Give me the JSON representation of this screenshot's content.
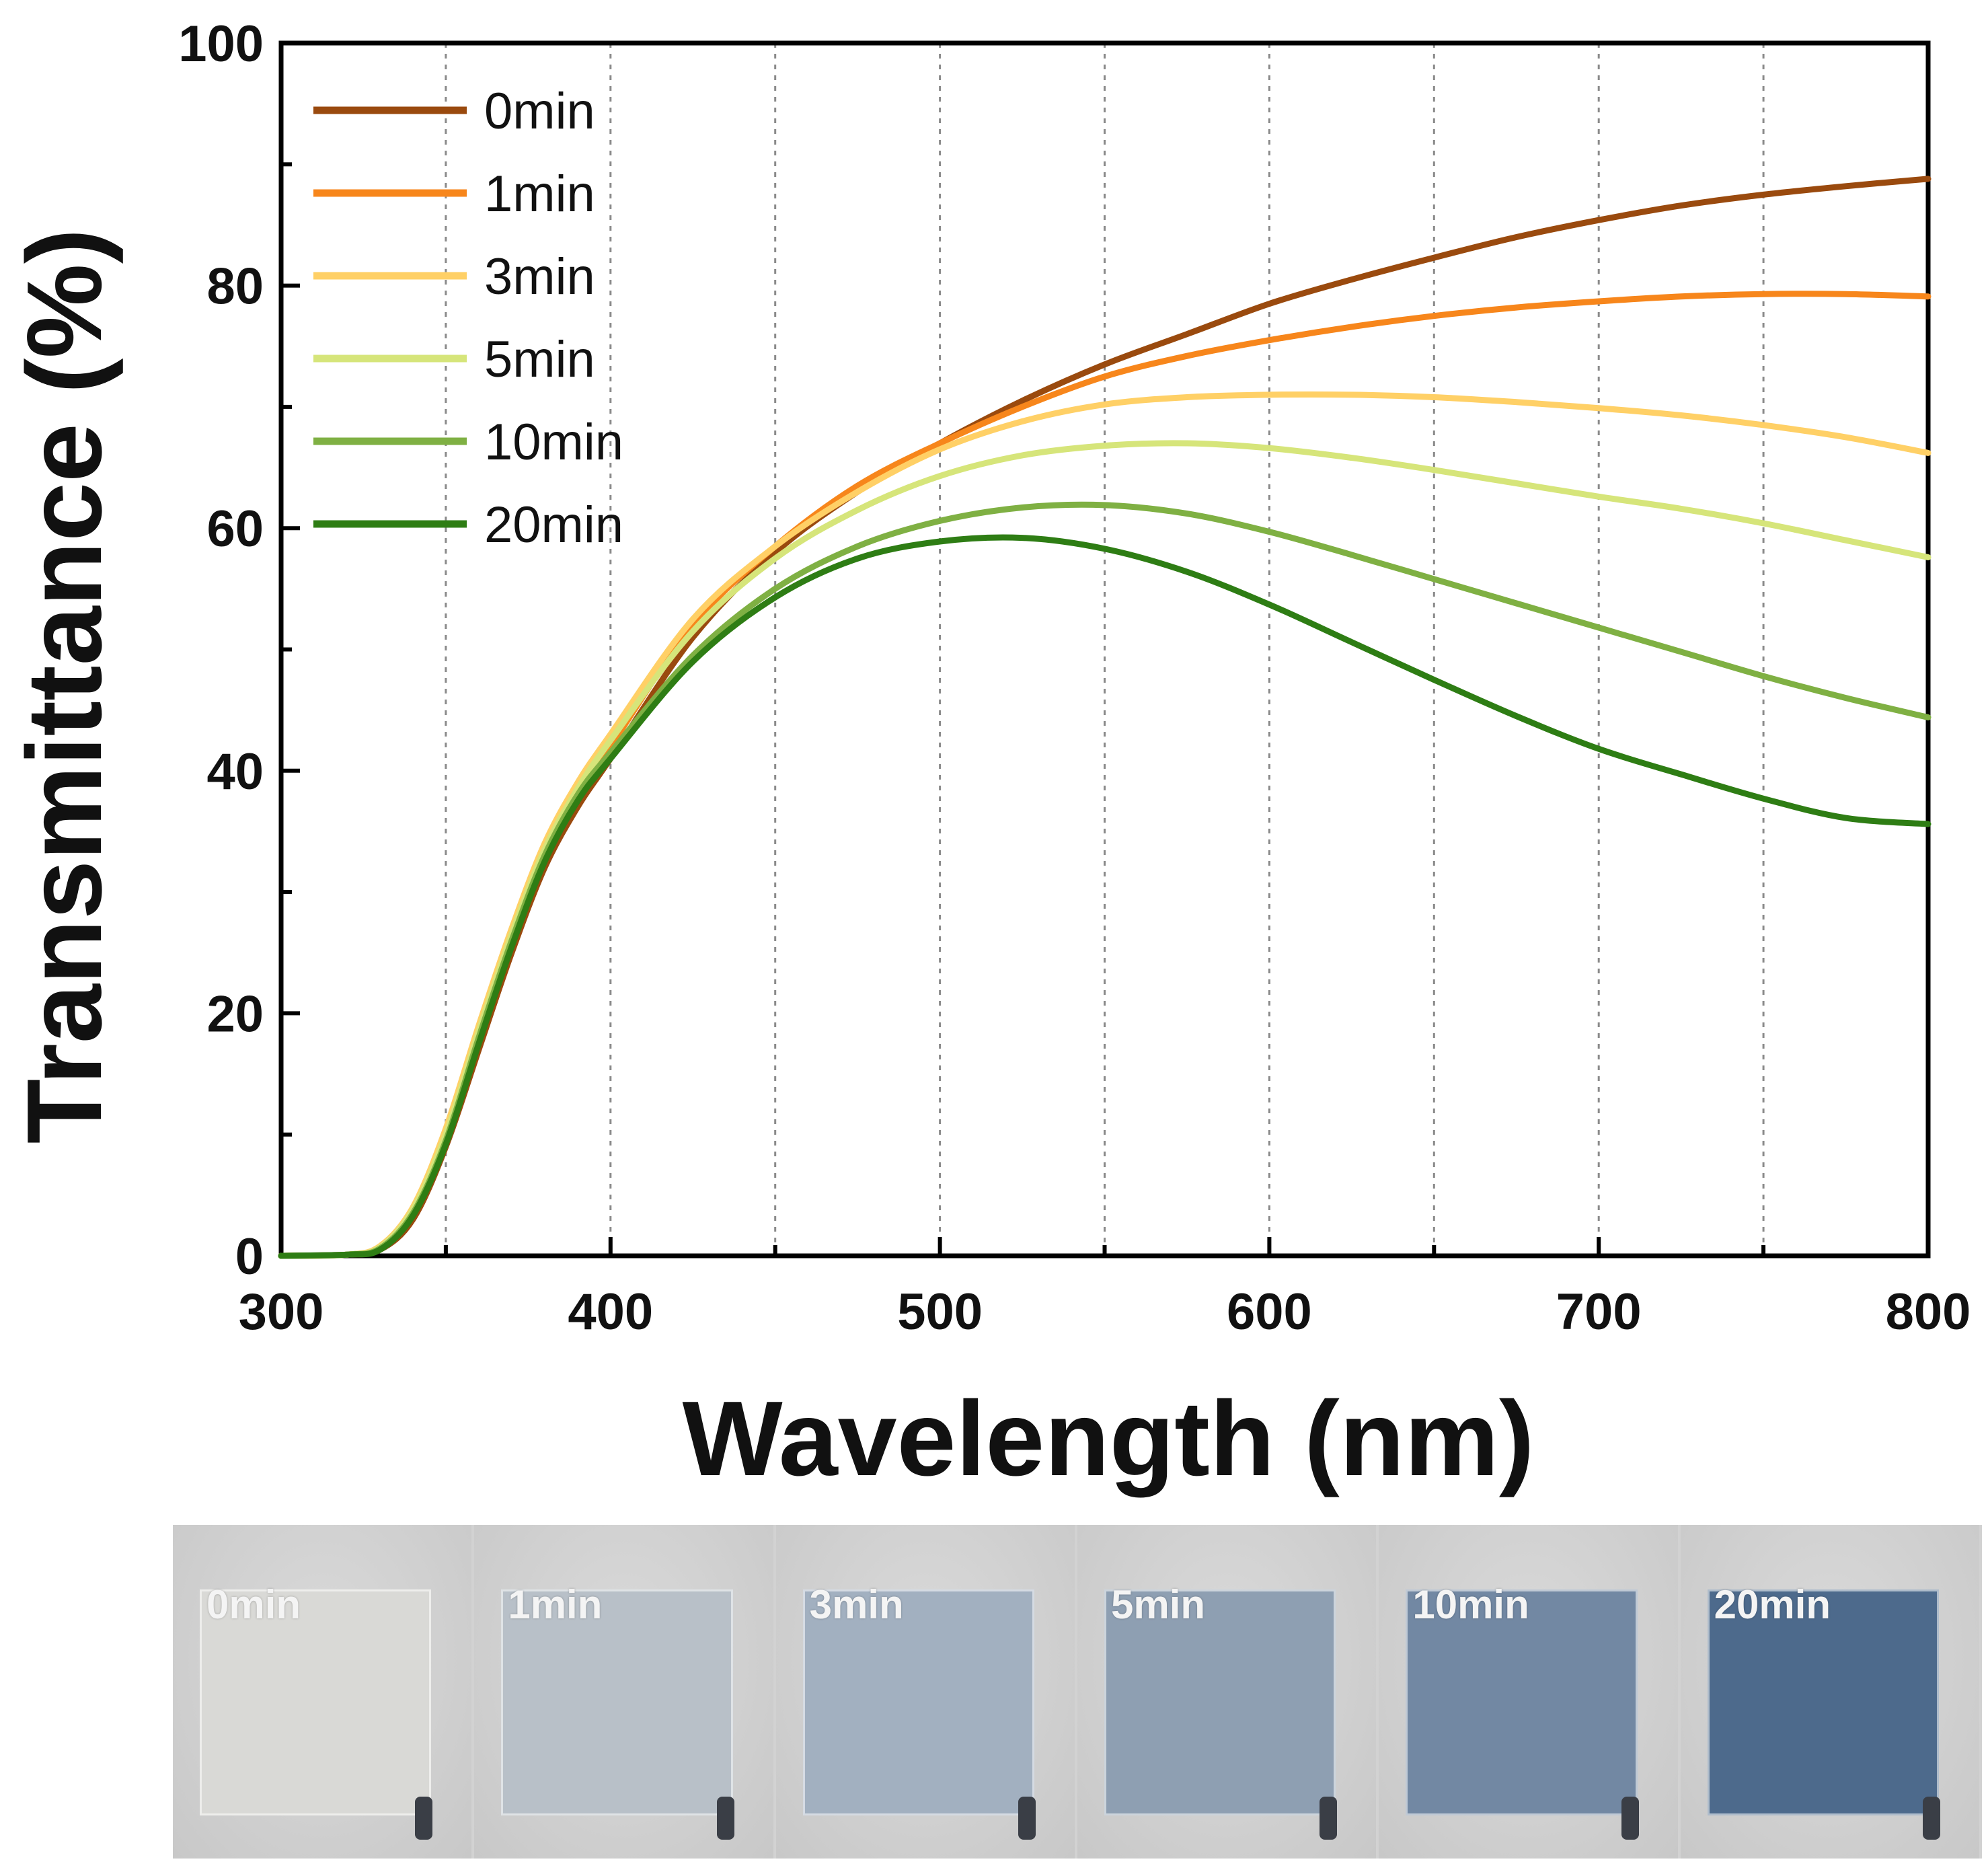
{
  "chart_data": {
    "type": "line",
    "xlabel": "Wavelength (nm)",
    "ylabel": "Transmittance (%)",
    "xlim": [
      300,
      800
    ],
    "ylim": [
      0,
      100
    ],
    "x_ticks": [
      300,
      400,
      500,
      600,
      700,
      800
    ],
    "y_ticks": [
      0,
      20,
      40,
      60,
      80,
      100
    ],
    "grid": "vertical dotted",
    "legend": "top-left",
    "x": [
      300,
      320,
      330,
      340,
      350,
      360,
      370,
      380,
      390,
      400,
      425,
      450,
      475,
      500,
      525,
      550,
      575,
      600,
      625,
      650,
      675,
      700,
      725,
      750,
      775,
      800
    ],
    "series": [
      {
        "name": "0min",
        "color": "#9a4a0e",
        "values": [
          0,
          0.1,
          0.5,
          3,
          9,
          17,
          25,
          32,
          37,
          41,
          51,
          58,
          63,
          67,
          70.5,
          73.5,
          76,
          78.5,
          80.5,
          82.3,
          84,
          85.4,
          86.6,
          87.5,
          88.2,
          88.8
        ]
      },
      {
        "name": "1min",
        "color": "#f7861b",
        "values": [
          0,
          0.1,
          0.7,
          3.5,
          10,
          18,
          26,
          33,
          38,
          42,
          52,
          58.5,
          63.5,
          67,
          70,
          72.5,
          74.2,
          75.5,
          76.6,
          77.5,
          78.2,
          78.7,
          79.1,
          79.3,
          79.3,
          79.1
        ]
      },
      {
        "name": "3min",
        "color": "#ffd066",
        "values": [
          0,
          0.1,
          0.8,
          4,
          10.5,
          19,
          27,
          34,
          39,
          43,
          52.5,
          58.5,
          63,
          66.5,
          68.8,
          70.2,
          70.8,
          71,
          71,
          70.8,
          70.4,
          69.9,
          69.3,
          68.5,
          67.5,
          66.2
        ]
      },
      {
        "name": "5min",
        "color": "#d6e57a",
        "values": [
          0,
          0.1,
          0.7,
          3.8,
          10,
          18.5,
          26.5,
          33.5,
          38.5,
          42.5,
          51.5,
          57.5,
          61.5,
          64.3,
          66,
          66.8,
          67,
          66.6,
          65.8,
          64.8,
          63.7,
          62.6,
          61.6,
          60.4,
          59,
          57.6
        ]
      },
      {
        "name": "10min",
        "color": "#7fb043",
        "values": [
          0,
          0.1,
          0.6,
          3.5,
          9.5,
          18,
          26,
          33,
          38,
          41.5,
          49.5,
          55,
          58.5,
          60.6,
          61.7,
          61.9,
          61.2,
          59.7,
          57.8,
          55.8,
          53.8,
          51.8,
          49.8,
          47.8,
          46,
          44.4
        ]
      },
      {
        "name": "20min",
        "color": "#2e7d14",
        "values": [
          0,
          0.1,
          0.5,
          3.3,
          9.2,
          17.5,
          25.5,
          32.5,
          37.5,
          41,
          49,
          54.3,
          57.5,
          58.9,
          59.2,
          58.3,
          56.4,
          53.7,
          50.6,
          47.5,
          44.5,
          41.8,
          39.7,
          37.7,
          36.1,
          35.6
        ]
      }
    ]
  },
  "photos": {
    "strip_background": "#d2d2d2",
    "items": [
      {
        "label": "0min",
        "tint": "#d9d9d6"
      },
      {
        "label": "1min",
        "tint": "#b8c0c8"
      },
      {
        "label": "3min",
        "tint": "#a2b0c0"
      },
      {
        "label": "5min",
        "tint": "#8e9fb2"
      },
      {
        "label": "10min",
        "tint": "#7288a3"
      },
      {
        "label": "20min",
        "tint": "#4d6a8c"
      }
    ]
  }
}
